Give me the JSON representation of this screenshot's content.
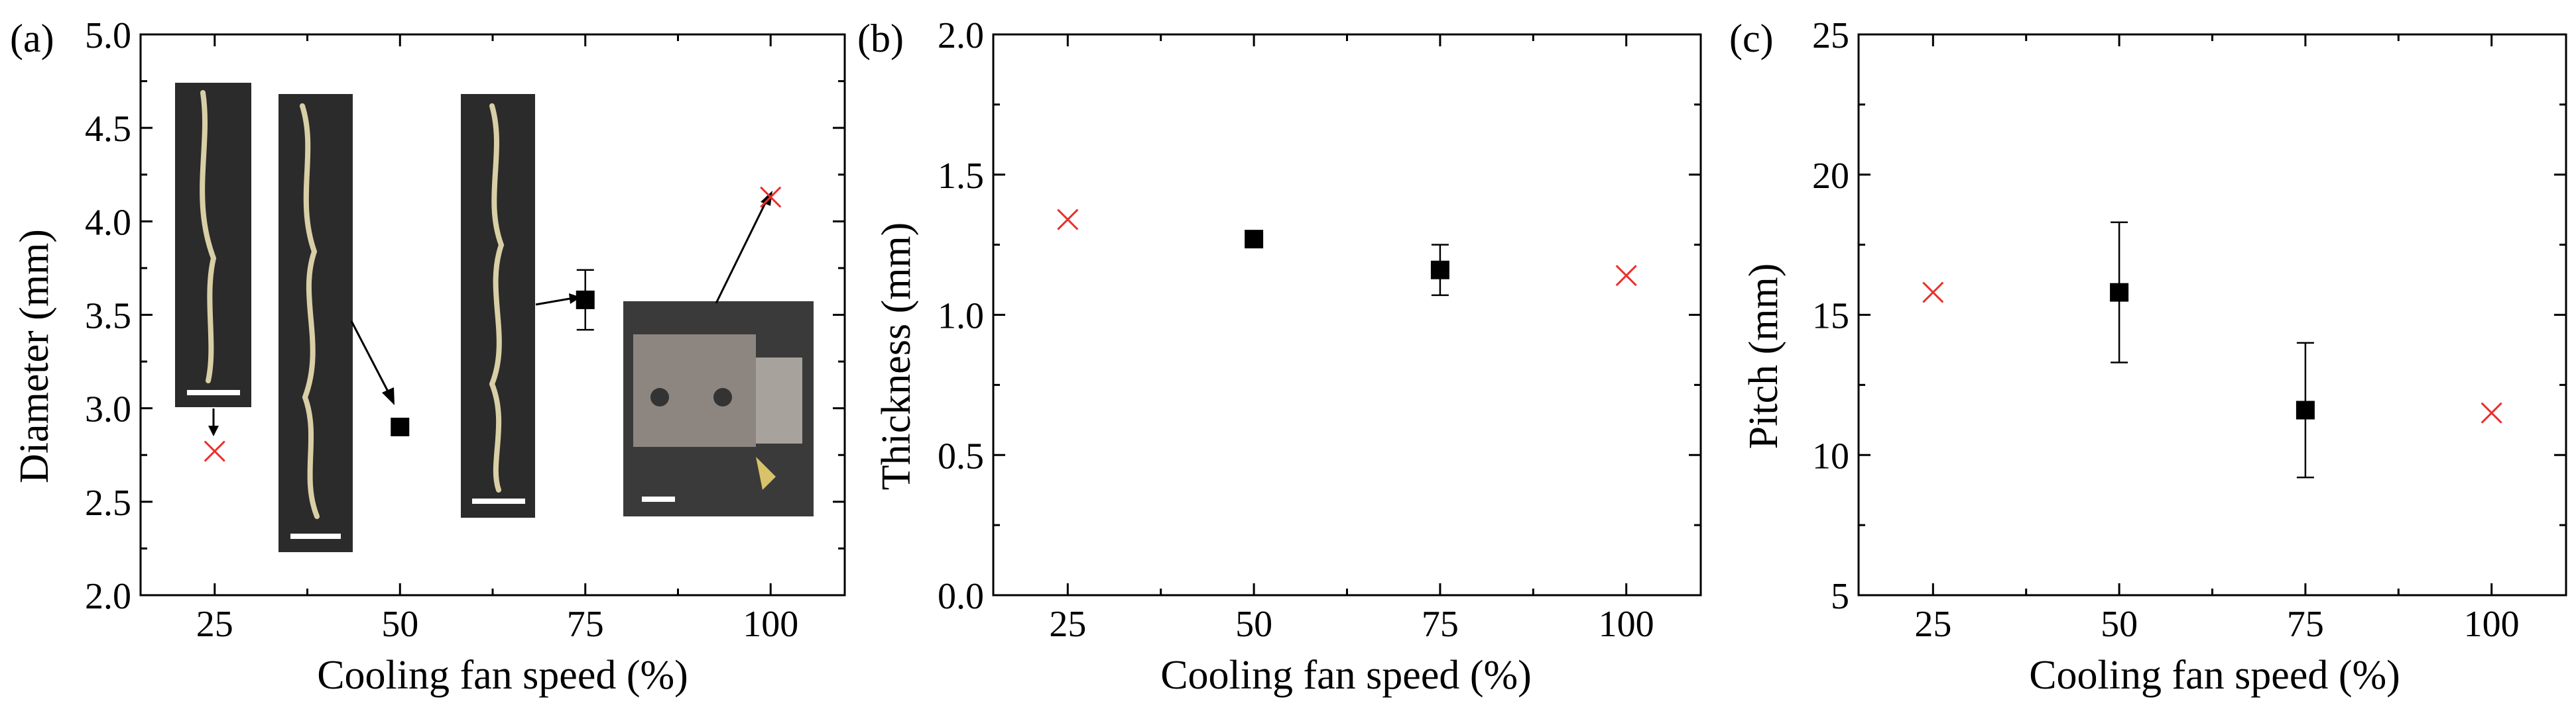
{
  "chart_data": [
    {
      "panel_label": "(a)",
      "type": "scatter",
      "xlabel": "Cooling fan speed (%)",
      "ylabel": "Diameter (mm)",
      "xlim": [
        15,
        110
      ],
      "ylim": [
        2.0,
        5.0
      ],
      "xticks": [
        "25",
        "50",
        "75",
        "100"
      ],
      "yticks": [
        "2.0",
        "2.5",
        "3.0",
        "3.5",
        "4.0",
        "4.5",
        "5.0"
      ],
      "series": [
        {
          "marker": "square",
          "color": "#000000",
          "points": [
            {
              "x": 50,
              "y": 2.9,
              "err": 0
            },
            {
              "x": 75,
              "y": 3.58,
              "err": 0.16
            }
          ]
        },
        {
          "marker": "cross",
          "color": "#e8302c",
          "points": [
            {
              "x": 25,
              "y": 2.77
            },
            {
              "x": 100,
              "y": 4.13
            }
          ]
        }
      ],
      "insets": [
        "filament-photo-25",
        "filament-photo-50",
        "filament-photo-75",
        "nozzle-photo-100"
      ]
    },
    {
      "panel_label": "(b)",
      "type": "scatter",
      "xlabel": "Cooling fan speed (%)",
      "ylabel": "Thickness (mm)",
      "xlim": [
        15,
        110
      ],
      "ylim": [
        0.0,
        2.0
      ],
      "xticks": [
        "25",
        "50",
        "75",
        "100"
      ],
      "yticks": [
        "0.0",
        "0.5",
        "1.0",
        "1.5",
        "2.0"
      ],
      "series": [
        {
          "marker": "square",
          "color": "#000000",
          "points": [
            {
              "x": 50,
              "y": 1.27,
              "err": 0
            },
            {
              "x": 75,
              "y": 1.16,
              "err": 0.09
            }
          ]
        },
        {
          "marker": "cross",
          "color": "#e8302c",
          "points": [
            {
              "x": 25,
              "y": 1.34
            },
            {
              "x": 100,
              "y": 1.14
            }
          ]
        }
      ]
    },
    {
      "panel_label": "(c)",
      "type": "scatter",
      "xlabel": "Cooling fan speed (%)",
      "ylabel": "Pitch (mm)",
      "xlim": [
        15,
        110
      ],
      "ylim": [
        5,
        25
      ],
      "xticks": [
        "25",
        "50",
        "75",
        "100"
      ],
      "yticks": [
        "5",
        "10",
        "15",
        "20",
        "25"
      ],
      "series": [
        {
          "marker": "square",
          "color": "#000000",
          "points": [
            {
              "x": 50,
              "y": 15.8,
              "err": 2.5
            },
            {
              "x": 75,
              "y": 11.6,
              "err": 2.4
            }
          ]
        },
        {
          "marker": "cross",
          "color": "#e8302c",
          "points": [
            {
              "x": 25,
              "y": 15.8
            },
            {
              "x": 100,
              "y": 11.5
            }
          ]
        }
      ]
    }
  ]
}
